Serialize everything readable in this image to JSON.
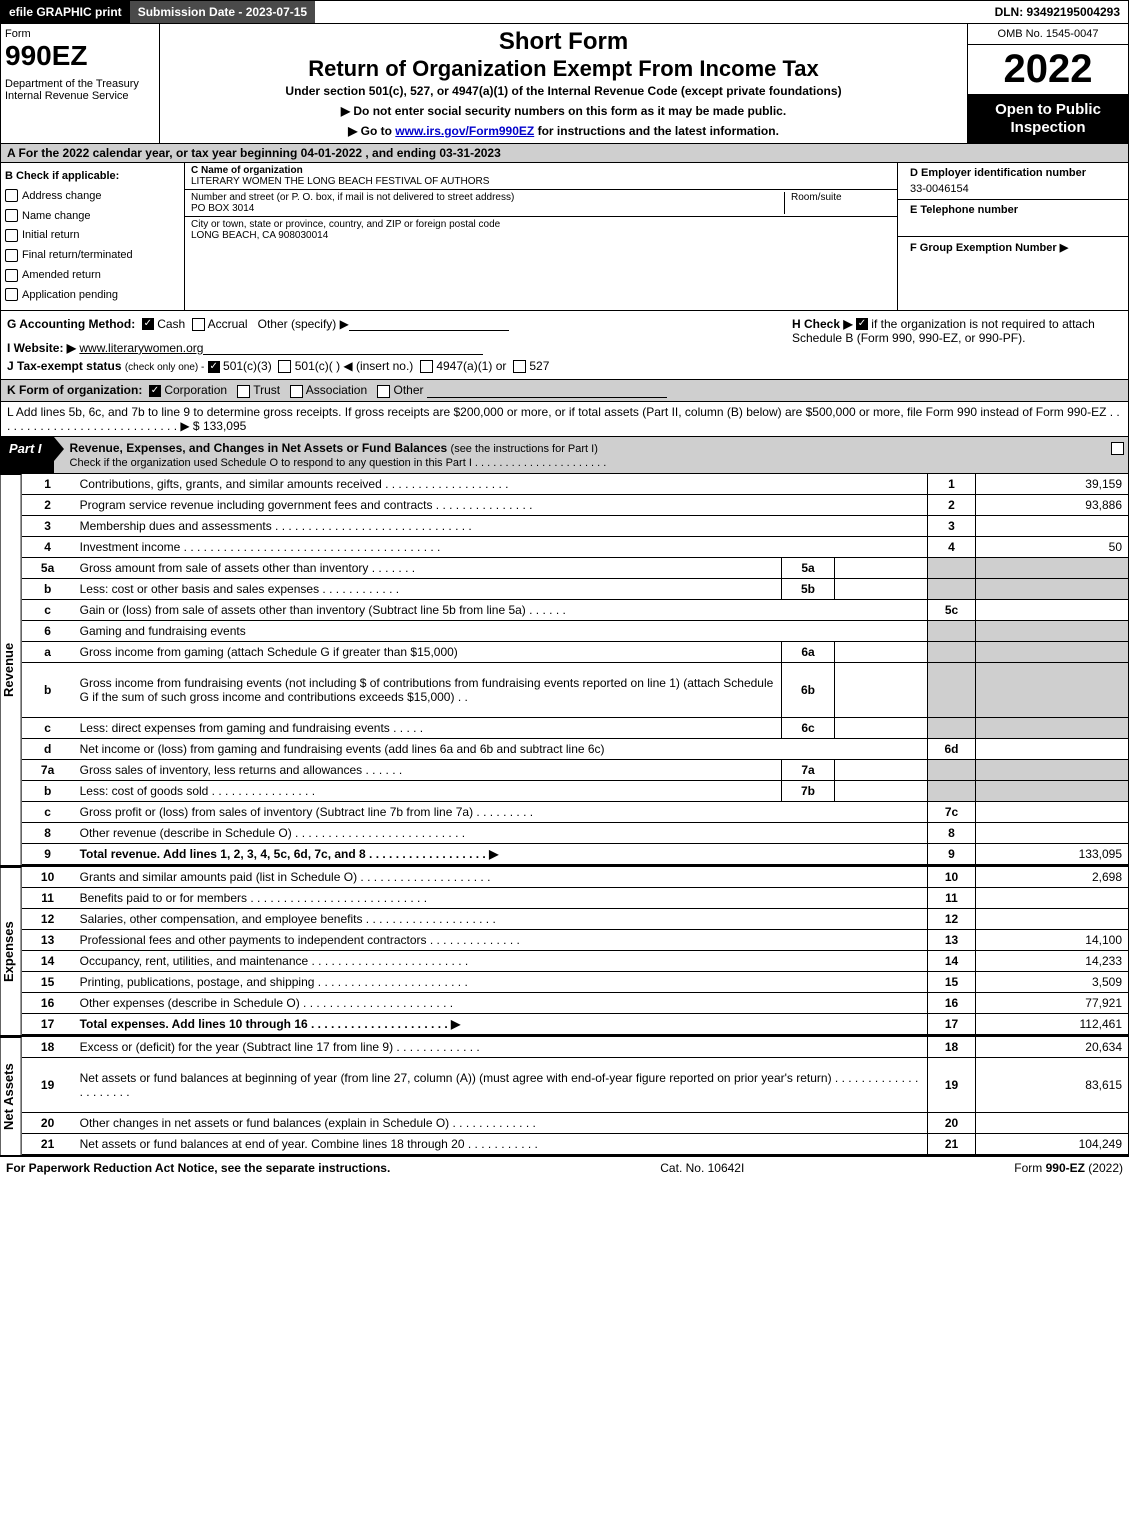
{
  "top_bar": {
    "left": "efile GRAPHIC print",
    "mid": "Submission Date - 2023-07-15",
    "right": "DLN: 93492195004293"
  },
  "header": {
    "form_label": "Form",
    "form_number": "990EZ",
    "dept": "Department of the Treasury\nInternal Revenue Service",
    "short": "Short Form",
    "title": "Return of Organization Exempt From Income Tax",
    "sub": "Under section 501(c), 527, or 4947(a)(1) of the Internal Revenue Code (except private foundations)",
    "line1": "▶ Do not enter social security numbers on this form as it may be made public.",
    "line2_pre": "▶ Go to ",
    "line2_link": "www.irs.gov/Form990EZ",
    "line2_post": " for instructions and the latest information.",
    "omb": "OMB No. 1545-0047",
    "year": "2022",
    "open": "Open to Public Inspection"
  },
  "row_a": "A  For the 2022 calendar year, or tax year beginning 04-01-2022 , and ending 03-31-2023",
  "info": {
    "b_label": "B  Check if applicable:",
    "b_items": [
      "Address change",
      "Name change",
      "Initial return",
      "Final return/terminated",
      "Amended return",
      "Application pending"
    ],
    "c_label": "C Name of organization",
    "c_name": "LITERARY WOMEN THE LONG BEACH FESTIVAL OF AUTHORS",
    "addr_label": "Number and street (or P. O. box, if mail is not delivered to street address)",
    "addr_val": "PO BOX 3014",
    "room_label": "Room/suite",
    "city_label": "City or town, state or province, country, and ZIP or foreign postal code",
    "city_val": "LONG BEACH, CA  908030014",
    "d_label": "D Employer identification number",
    "d_val": "33-0046154",
    "e_label": "E Telephone number",
    "f_label": "F Group Exemption Number  ▶"
  },
  "mid": {
    "g": "G Accounting Method:",
    "g_cash": "Cash",
    "g_acc": "Accrual",
    "g_other": "Other (specify) ▶",
    "h_text": "H  Check ▶",
    "h_text2": "if the organization is not required to attach Schedule B (Form 990, 990-EZ, or 990-PF).",
    "i": "I Website: ▶",
    "i_val": "www.literarywomen.org",
    "j": "J Tax-exempt status",
    "j_sub": "(check only one) -",
    "j1": "501(c)(3)",
    "j2": "501(c)(  ) ◀ (insert no.)",
    "j3": "4947(a)(1) or",
    "j4": "527",
    "k": "K Form of organization:",
    "k1": "Corporation",
    "k2": "Trust",
    "k3": "Association",
    "k4": "Other",
    "l": "L Add lines 5b, 6c, and 7b to line 9 to determine gross receipts. If gross receipts are $200,000 or more, or if total assets (Part II, column (B) below) are $500,000 or more, file Form 990 instead of Form 990-EZ  .  .  .  .  .  .  .  .  .  .  .  .  .  .  .  .  .  .  .  .  .  .  .  .  .  .  .  . ▶ $ 133,095"
  },
  "part1": {
    "tag": "Part I",
    "title": "Revenue, Expenses, and Changes in Net Assets or Fund Balances",
    "sub": "(see the instructions for Part I)",
    "note": "Check if the organization used Schedule O to respond to any question in this Part I . . . . . . . . . . . . . . . . . . . . . ."
  },
  "revenue": {
    "label": "Revenue",
    "rows": [
      {
        "n": "1",
        "d": "Contributions, gifts, grants, and similar amounts received  .  .  .  .  .  .  .  .  .  .  .  .  .  .  .  .  .  .  .",
        "num": "1",
        "amt": "39,159"
      },
      {
        "n": "2",
        "d": "Program service revenue including government fees and contracts  .  .  .  .  .  .  .  .  .  .  .  .  .  .  .",
        "num": "2",
        "amt": "93,886"
      },
      {
        "n": "3",
        "d": "Membership dues and assessments  .  .  .  .  .  .  .  .  .  .  .  .  .  .  .  .  .  .  .  .  .  .  .  .  .  .  .  .  .  .",
        "num": "3",
        "amt": ""
      },
      {
        "n": "4",
        "d": "Investment income  .  .  .  .  .  .  .  .  .  .  .  .  .  .  .  .  .  .  .  .  .  .  .  .  .  .  .  .  .  .  .  .  .  .  .  .  .  .  .",
        "num": "4",
        "amt": "50"
      },
      {
        "n": "5a",
        "d": "Gross amount from sale of assets other than inventory  .  .  .  .  .  .  .",
        "inset": "5a",
        "insetval": "",
        "grey": true
      },
      {
        "n": "b",
        "d": "Less: cost or other basis and sales expenses  .  .  .  .  .  .  .  .  .  .  .  .",
        "inset": "5b",
        "insetval": "",
        "grey": true
      },
      {
        "n": "c",
        "d": "Gain or (loss) from sale of assets other than inventory (Subtract line 5b from line 5a)  .  .  .  .  .  .",
        "num": "5c",
        "amt": ""
      },
      {
        "n": "6",
        "d": "Gaming and fundraising events",
        "grey": true,
        "noamt": true
      },
      {
        "n": "a",
        "d": "Gross income from gaming (attach Schedule G if greater than $15,000)",
        "inset": "6a",
        "insetval": "",
        "grey": true
      },
      {
        "n": "b",
        "d": "Gross income from fundraising events (not including $                    of contributions from fundraising events reported on line 1) (attach Schedule G if the sum of such gross income and contributions exceeds $15,000)   .  .",
        "inset": "6b",
        "insetval": "",
        "grey": true,
        "tall": true
      },
      {
        "n": "c",
        "d": "Less: direct expenses from gaming and fundraising events  .  .  .  .  .",
        "inset": "6c",
        "insetval": "",
        "grey": true
      },
      {
        "n": "d",
        "d": "Net income or (loss) from gaming and fundraising events (add lines 6a and 6b and subtract line 6c)",
        "num": "6d",
        "amt": ""
      },
      {
        "n": "7a",
        "d": "Gross sales of inventory, less returns and allowances  .  .  .  .  .  .",
        "inset": "7a",
        "insetval": "",
        "grey": true
      },
      {
        "n": "b",
        "d": "Less: cost of goods sold        .  .  .  .  .  .  .  .  .  .  .  .  .  .  .  .",
        "inset": "7b",
        "insetval": "",
        "grey": true
      },
      {
        "n": "c",
        "d": "Gross profit or (loss) from sales of inventory (Subtract line 7b from line 7a)  .  .  .  .  .  .  .  .  .",
        "num": "7c",
        "amt": ""
      },
      {
        "n": "8",
        "d": "Other revenue (describe in Schedule O)  .  .  .  .  .  .  .  .  .  .  .  .  .  .  .  .  .  .  .  .  .  .  .  .  .  .",
        "num": "8",
        "amt": ""
      },
      {
        "n": "9",
        "d": "Total revenue. Add lines 1, 2, 3, 4, 5c, 6d, 7c, and 8  .  .  .  .  .  .  .  .  .  .  .  .  .  .  .  .  .  . ▶",
        "num": "9",
        "amt": "133,095",
        "bold": true
      }
    ]
  },
  "expenses": {
    "label": "Expenses",
    "rows": [
      {
        "n": "10",
        "d": "Grants and similar amounts paid (list in Schedule O)  .  .  .  .  .  .  .  .  .  .  .  .  .  .  .  .  .  .  .  .",
        "num": "10",
        "amt": "2,698"
      },
      {
        "n": "11",
        "d": "Benefits paid to or for members       .  .  .  .  .  .  .  .  .  .  .  .  .  .  .  .  .  .  .  .  .  .  .  .  .  .  .",
        "num": "11",
        "amt": ""
      },
      {
        "n": "12",
        "d": "Salaries, other compensation, and employee benefits  .  .  .  .  .  .  .  .  .  .  .  .  .  .  .  .  .  .  .  .",
        "num": "12",
        "amt": ""
      },
      {
        "n": "13",
        "d": "Professional fees and other payments to independent contractors  .  .  .  .  .  .  .  .  .  .  .  .  .  .",
        "num": "13",
        "amt": "14,100"
      },
      {
        "n": "14",
        "d": "Occupancy, rent, utilities, and maintenance  .  .  .  .  .  .  .  .  .  .  .  .  .  .  .  .  .  .  .  .  .  .  .  .",
        "num": "14",
        "amt": "14,233"
      },
      {
        "n": "15",
        "d": "Printing, publications, postage, and shipping  .  .  .  .  .  .  .  .  .  .  .  .  .  .  .  .  .  .  .  .  .  .  .",
        "num": "15",
        "amt": "3,509"
      },
      {
        "n": "16",
        "d": "Other expenses (describe in Schedule O)      .  .  .  .  .  .  .  .  .  .  .  .  .  .  .  .  .  .  .  .  .  .  .",
        "num": "16",
        "amt": "77,921"
      },
      {
        "n": "17",
        "d": "Total expenses. Add lines 10 through 16      .  .  .  .  .  .  .  .  .  .  .  .  .  .  .  .  .  .  .  .  . ▶",
        "num": "17",
        "amt": "112,461",
        "bold": true
      }
    ]
  },
  "netassets": {
    "label": "Net Assets",
    "rows": [
      {
        "n": "18",
        "d": "Excess or (deficit) for the year (Subtract line 17 from line 9)        .  .  .  .  .  .  .  .  .  .  .  .  .",
        "num": "18",
        "amt": "20,634"
      },
      {
        "n": "19",
        "d": "Net assets or fund balances at beginning of year (from line 27, column (A)) (must agree with end-of-year figure reported on prior year's return)  .  .  .  .  .  .  .  .  .  .  .  .  .  .  .  .  .  .  .  .  .",
        "num": "19",
        "amt": "83,615",
        "tall": true,
        "greytop": true
      },
      {
        "n": "20",
        "d": "Other changes in net assets or fund balances (explain in Schedule O)  .  .  .  .  .  .  .  .  .  .  .  .  .",
        "num": "20",
        "amt": ""
      },
      {
        "n": "21",
        "d": "Net assets or fund balances at end of year. Combine lines 18 through 20  .  .  .  .  .  .  .  .  .  .  .",
        "num": "21",
        "amt": "104,249"
      }
    ]
  },
  "footer": {
    "left": "For Paperwork Reduction Act Notice, see the separate instructions.",
    "mid": "Cat. No. 10642I",
    "right_pre": "Form ",
    "right_bold": "990-EZ",
    "right_post": " (2022)"
  },
  "colors": {
    "grey": "#cfcfcf",
    "black": "#000000",
    "white": "#ffffff"
  }
}
